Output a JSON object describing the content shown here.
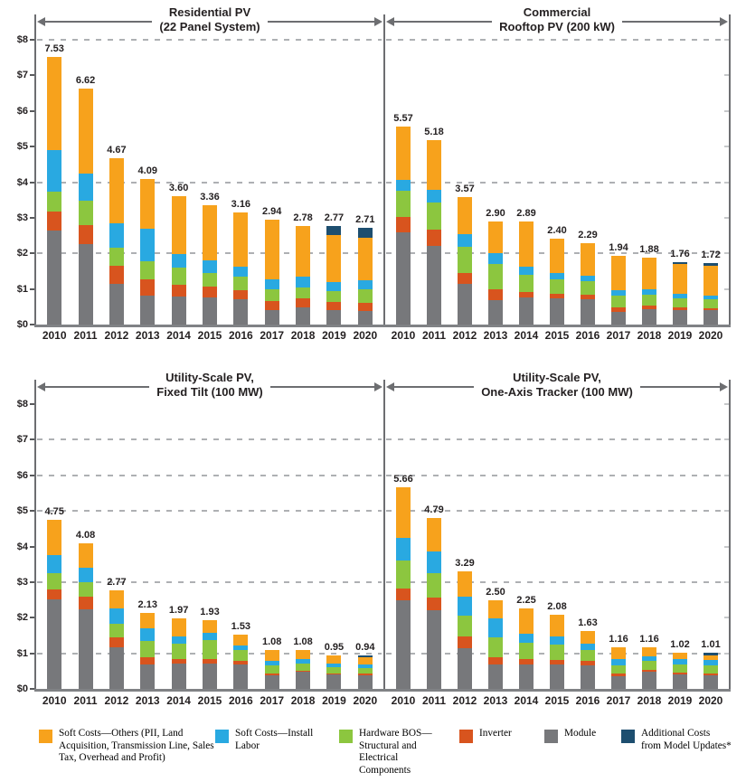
{
  "colors": {
    "soft_other": "#F7A21C",
    "install_labor": "#29A9E1",
    "hardware_bos": "#8CC63F",
    "inverter": "#D8541E",
    "module": "#77787B",
    "additional": "#1D4E6F",
    "axis": "#6D6E71",
    "baseline": "#808285",
    "gridline": "#AEB0B3",
    "text": "#231F20"
  },
  "y_axis": {
    "tick_labels": [
      "$0",
      "$1",
      "$2",
      "$3",
      "$4",
      "$5",
      "$6",
      "$7",
      "$8"
    ],
    "max": 8
  },
  "legend": [
    {
      "key": "soft_other",
      "label": "Soft Costs—Others (PII, Land Acquisition, Transmission Line, Sales Tax, Overhead and Profit)"
    },
    {
      "key": "install_labor",
      "label": "Soft Costs—Install Labor"
    },
    {
      "key": "hardware_bos",
      "label": "Hardware BOS—Structural and Electrical Components"
    },
    {
      "key": "inverter",
      "label": "Inverter"
    },
    {
      "key": "module",
      "label": "Module"
    },
    {
      "key": "additional",
      "label": "Additional Costs from Model Updates*"
    }
  ],
  "chart_data": [
    {
      "type": "bar",
      "stacked": true,
      "title_line1": "Residential PV",
      "title_line2": "(22 Panel System)",
      "categories": [
        "2010",
        "2011",
        "2012",
        "2013",
        "2014",
        "2015",
        "2016",
        "2017",
        "2018",
        "2019",
        "2020"
      ],
      "totals_labels": [
        "7.53",
        "6.62",
        "4.67",
        "4.09",
        "3.60",
        "3.36",
        "3.16",
        "2.94",
        "2.78",
        "2.77",
        "2.71"
      ],
      "ylim": [
        0,
        8
      ],
      "gridlines": [
        8,
        4,
        2
      ],
      "series": [
        {
          "name": "Module",
          "key": "module",
          "values": [
            2.65,
            2.25,
            1.15,
            0.81,
            0.79,
            0.76,
            0.7,
            0.41,
            0.47,
            0.4,
            0.39
          ]
        },
        {
          "name": "Inverter",
          "key": "inverter",
          "values": [
            0.52,
            0.54,
            0.5,
            0.46,
            0.32,
            0.31,
            0.26,
            0.25,
            0.26,
            0.24,
            0.22
          ]
        },
        {
          "name": "Hardware BOS—Structural and Electrical Components",
          "key": "hardware_bos",
          "values": [
            0.57,
            0.68,
            0.51,
            0.51,
            0.48,
            0.39,
            0.39,
            0.32,
            0.31,
            0.31,
            0.38
          ]
        },
        {
          "name": "Soft Costs—Install Labor",
          "key": "install_labor",
          "values": [
            1.16,
            0.76,
            0.68,
            0.91,
            0.38,
            0.34,
            0.27,
            0.29,
            0.3,
            0.24,
            0.25
          ]
        },
        {
          "name": "Soft Costs—Others (PII, Land Acquisition, Transmission Line, Sales Tax, Overhead and Profit)",
          "key": "soft_other",
          "values": [
            2.63,
            2.39,
            1.83,
            1.4,
            1.63,
            1.56,
            1.54,
            1.67,
            1.44,
            1.32,
            1.19
          ]
        },
        {
          "name": "Additional Costs from Model Updates*",
          "key": "additional",
          "values": [
            0,
            0,
            0,
            0,
            0,
            0,
            0,
            0,
            0,
            0.26,
            0.28
          ]
        }
      ]
    },
    {
      "type": "bar",
      "stacked": true,
      "title_line1": "Commercial",
      "title_line2": "Rooftop PV (200 kW)",
      "categories": [
        "2010",
        "2011",
        "2012",
        "2013",
        "2014",
        "2015",
        "2016",
        "2017",
        "2018",
        "2019",
        "2020"
      ],
      "totals_labels": [
        "5.57",
        "5.18",
        "3.57",
        "2.90",
        "2.89",
        "2.40",
        "2.29",
        "1.94",
        "1.88",
        "1.76",
        "1.72"
      ],
      "ylim": [
        0,
        8
      ],
      "gridlines": [
        8,
        4,
        2
      ],
      "series": [
        {
          "name": "Module",
          "key": "module",
          "values": [
            2.6,
            2.21,
            1.14,
            0.68,
            0.76,
            0.74,
            0.7,
            0.36,
            0.42,
            0.41,
            0.4
          ]
        },
        {
          "name": "Inverter",
          "key": "inverter",
          "values": [
            0.41,
            0.46,
            0.3,
            0.3,
            0.15,
            0.13,
            0.13,
            0.13,
            0.11,
            0.06,
            0.05
          ]
        },
        {
          "name": "Hardware BOS—Structural and Electrical Components",
          "key": "hardware_bos",
          "values": [
            0.74,
            0.77,
            0.74,
            0.72,
            0.49,
            0.4,
            0.38,
            0.31,
            0.3,
            0.27,
            0.25
          ]
        },
        {
          "name": "Soft Costs—Install Labor",
          "key": "install_labor",
          "values": [
            0.31,
            0.34,
            0.36,
            0.31,
            0.23,
            0.19,
            0.17,
            0.17,
            0.17,
            0.13,
            0.12
          ]
        },
        {
          "name": "Soft Costs—Others (PII, Land Acquisition, Transmission Line, Sales Tax, Overhead and Profit)",
          "key": "soft_other",
          "values": [
            1.51,
            1.4,
            1.03,
            0.89,
            1.26,
            0.94,
            0.91,
            0.97,
            0.88,
            0.82,
            0.83
          ]
        },
        {
          "name": "Additional Costs from Model Updates*",
          "key": "additional",
          "values": [
            0,
            0,
            0,
            0,
            0,
            0,
            0,
            0,
            0,
            0.07,
            0.07
          ]
        }
      ]
    },
    {
      "type": "bar",
      "stacked": true,
      "title_line1": "Utility-Scale PV,",
      "title_line2": "Fixed Tilt (100 MW)",
      "categories": [
        "2010",
        "2011",
        "2012",
        "2013",
        "2014",
        "2015",
        "2016",
        "2017",
        "2018",
        "2019",
        "2020"
      ],
      "totals_labels": [
        "4.75",
        "4.08",
        "2.77",
        "2.13",
        "1.97",
        "1.93",
        "1.53",
        "1.08",
        "1.08",
        "0.95",
        "0.94"
      ],
      "ylim": [
        0,
        8
      ],
      "gridlines": [
        7,
        6,
        5,
        3,
        1
      ],
      "series": [
        {
          "name": "Module",
          "key": "module",
          "values": [
            2.52,
            2.24,
            1.16,
            0.69,
            0.71,
            0.71,
            0.68,
            0.38,
            0.47,
            0.4,
            0.38
          ]
        },
        {
          "name": "Inverter",
          "key": "inverter",
          "values": [
            0.28,
            0.34,
            0.29,
            0.2,
            0.13,
            0.12,
            0.1,
            0.06,
            0.05,
            0.04,
            0.04
          ]
        },
        {
          "name": "Hardware BOS—Structural and Electrical Components",
          "key": "hardware_bos",
          "values": [
            0.46,
            0.42,
            0.37,
            0.46,
            0.42,
            0.54,
            0.3,
            0.21,
            0.2,
            0.18,
            0.17
          ]
        },
        {
          "name": "Soft Costs—Install Labor",
          "key": "install_labor",
          "values": [
            0.49,
            0.41,
            0.44,
            0.34,
            0.21,
            0.2,
            0.14,
            0.14,
            0.11,
            0.09,
            0.09
          ]
        },
        {
          "name": "Soft Costs—Others (PII, Land Acquisition, Transmission Line, Sales Tax, Overhead and Profit)",
          "key": "soft_other",
          "values": [
            1.0,
            0.67,
            0.51,
            0.44,
            0.5,
            0.36,
            0.31,
            0.29,
            0.25,
            0.24,
            0.22
          ]
        },
        {
          "name": "Additional Costs from Model Updates*",
          "key": "additional",
          "values": [
            0,
            0,
            0,
            0,
            0,
            0,
            0,
            0,
            0,
            0,
            0.04
          ]
        }
      ]
    },
    {
      "type": "bar",
      "stacked": true,
      "title_line1": "Utility-Scale PV,",
      "title_line2": "One-Axis Tracker (100 MW)",
      "categories": [
        "2010",
        "2011",
        "2012",
        "2013",
        "2014",
        "2015",
        "2016",
        "2017",
        "2018",
        "2019",
        "2020"
      ],
      "totals_labels": [
        "5.66",
        "4.79",
        "3.29",
        "2.50",
        "2.25",
        "2.08",
        "1.63",
        "1.16",
        "1.16",
        "1.02",
        "1.01"
      ],
      "ylim": [
        0,
        8
      ],
      "gridlines": [
        7,
        6,
        5,
        3,
        1
      ],
      "series": [
        {
          "name": "Module",
          "key": "module",
          "values": [
            2.5,
            2.22,
            1.14,
            0.68,
            0.69,
            0.69,
            0.67,
            0.36,
            0.47,
            0.4,
            0.38
          ]
        },
        {
          "name": "Inverter",
          "key": "inverter",
          "values": [
            0.31,
            0.34,
            0.33,
            0.2,
            0.15,
            0.12,
            0.11,
            0.08,
            0.06,
            0.06,
            0.05
          ]
        },
        {
          "name": "Hardware BOS—Structural and Electrical Components",
          "key": "hardware_bos",
          "values": [
            0.79,
            0.69,
            0.58,
            0.56,
            0.45,
            0.44,
            0.31,
            0.23,
            0.25,
            0.23,
            0.22
          ]
        },
        {
          "name": "Soft Costs—Install Labor",
          "key": "install_labor",
          "values": [
            0.63,
            0.61,
            0.53,
            0.53,
            0.25,
            0.23,
            0.17,
            0.17,
            0.14,
            0.15,
            0.15
          ]
        },
        {
          "name": "Soft Costs—Others (PII, Land Acquisition, Transmission Line, Sales Tax, Overhead and Profit)",
          "key": "soft_other",
          "values": [
            1.43,
            0.93,
            0.71,
            0.53,
            0.71,
            0.6,
            0.37,
            0.32,
            0.24,
            0.18,
            0.15
          ]
        },
        {
          "name": "Additional Costs from Model Updates*",
          "key": "additional",
          "values": [
            0,
            0,
            0,
            0,
            0,
            0,
            0,
            0,
            0,
            0,
            0.06
          ]
        }
      ]
    }
  ]
}
